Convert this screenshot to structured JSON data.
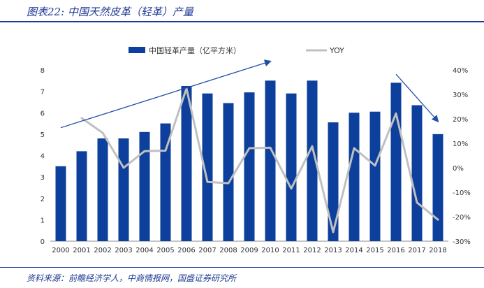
{
  "figure_title": "图表22: 中国天然皮革（轻革）产量",
  "source_note": "资料来源：前瞻经济学人，中商情报网，国盛证券研究所",
  "colors": {
    "bar": "#0d3f9c",
    "yoy_line": "#c0c0c0",
    "trend_arrow": "#1f4ea6",
    "axis_text": "#333333",
    "title": "#1f3a93"
  },
  "chart_data": {
    "type": "bar",
    "categories": [
      "2000",
      "2001",
      "2002",
      "2003",
      "2004",
      "2005",
      "2006",
      "2007",
      "2008",
      "2009",
      "2010",
      "2011",
      "2012",
      "2013",
      "2014",
      "2015",
      "2016",
      "2017",
      "2018"
    ],
    "series": [
      {
        "name": "中国轻革产量（亿平方米）",
        "type": "bar",
        "axis": "left",
        "values": [
          3.5,
          4.2,
          4.8,
          4.8,
          5.1,
          5.5,
          7.25,
          6.9,
          6.45,
          6.95,
          7.5,
          6.9,
          7.5,
          5.55,
          6.0,
          6.05,
          7.4,
          6.35,
          5.0
        ]
      },
      {
        "name": "YOY",
        "type": "line",
        "axis": "right",
        "values": [
          null,
          20.3,
          14.3,
          0.0,
          6.8,
          7.0,
          32.4,
          -5.8,
          -6.3,
          8.0,
          8.2,
          -8.5,
          8.8,
          -26.3,
          8.0,
          0.9,
          22.2,
          -14.2,
          -21.2
        ]
      }
    ],
    "yaxis_left": {
      "ylim": [
        0,
        8
      ],
      "ticks": [
        "0",
        "1",
        "2",
        "3",
        "4",
        "5",
        "6",
        "7",
        "8"
      ]
    },
    "yaxis_right": {
      "ylim": [
        -30,
        40
      ],
      "ticks": [
        "-30%",
        "-20%",
        "-10%",
        "0%",
        "10%",
        "20%",
        "30%",
        "40%"
      ]
    },
    "legend_position": "top",
    "grid": false,
    "annotations": [
      {
        "type": "arrow",
        "from": [
          "2000",
          5.3
        ],
        "to": [
          "2010",
          8.4
        ]
      },
      {
        "type": "arrow",
        "from": [
          "2016",
          7.8
        ],
        "to": [
          "2018",
          5.6
        ]
      }
    ]
  }
}
